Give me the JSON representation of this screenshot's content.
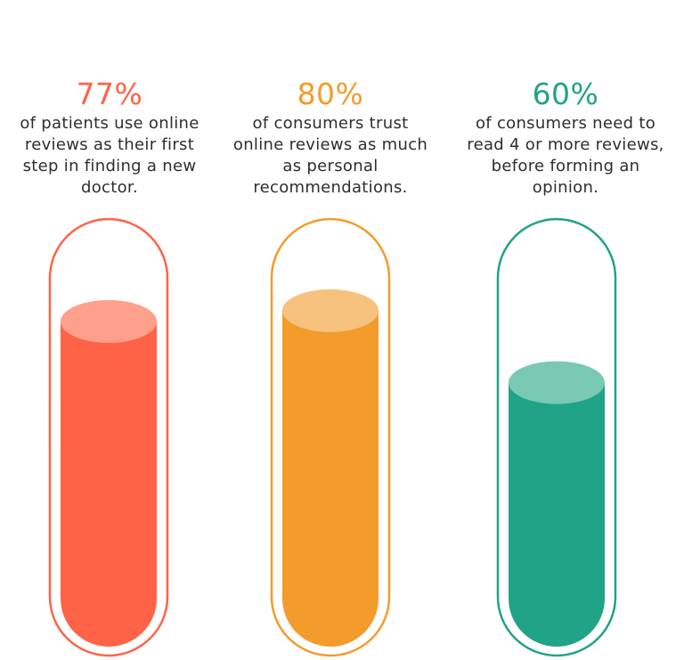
{
  "chart_data": {
    "type": "bar",
    "categories": [
      "of patients use online reviews as their first step in finding a new doctor.",
      "of consumers trust online reviews as much as personal recommendations.",
      "of consumers need to read 4 or more reviews, before forming an opinion."
    ],
    "values": [
      77,
      80,
      60
    ],
    "ylim": [
      0,
      100
    ],
    "unit": "%"
  },
  "stats": [
    {
      "value": 77,
      "label": "77%",
      "lines": [
        "of patients use online",
        "reviews as their first",
        "step in finding a new",
        "doctor."
      ],
      "color": "#FF6347",
      "cap_color": "#FFA08C",
      "outline_color": "#FF6347"
    },
    {
      "value": 80,
      "label": "80%",
      "lines": [
        "of consumers trust",
        "online reviews as much",
        "as personal",
        "recommendations."
      ],
      "color": "#F39C2B",
      "cap_color": "#F7C27E",
      "outline_color": "#F39C2B"
    },
    {
      "value": 60,
      "label": "60%",
      "lines": [
        "of consumers need to",
        "read 4 or more reviews,",
        "before forming an",
        "opinion."
      ],
      "color": "#20A386",
      "cap_color": "#79C9B5",
      "outline_color": "#20A386"
    }
  ]
}
